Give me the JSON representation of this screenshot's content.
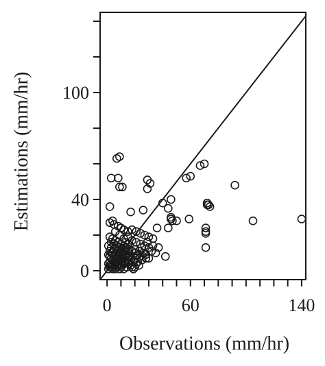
{
  "chart_data": {
    "type": "scatter",
    "xlabel": "Observations (mm/hr)",
    "ylabel": "Estimations (mm/hr)",
    "xlim": [
      -5,
      143
    ],
    "ylim": [
      -5,
      145
    ],
    "x_ticks": [
      0,
      10,
      20,
      30,
      40,
      50,
      60,
      70,
      80,
      90,
      100,
      110,
      120,
      130,
      140
    ],
    "x_tick_labels": [
      {
        "value": 0,
        "text": "0"
      },
      {
        "value": 60,
        "text": "60"
      },
      {
        "value": 140,
        "text": "140"
      }
    ],
    "y_ticks": [
      0,
      20,
      40,
      60,
      80,
      100,
      120,
      140
    ],
    "y_tick_labels": [
      {
        "value": 0,
        "text": "0"
      },
      {
        "value": 40,
        "text": "40"
      },
      {
        "value": 100,
        "text": "100"
      }
    ],
    "reference_line": "y = x",
    "grid": false,
    "series": [
      {
        "points": [
          [
            3,
            52
          ],
          [
            7,
            63
          ],
          [
            9,
            64
          ],
          [
            8,
            52
          ],
          [
            9,
            47
          ],
          [
            11,
            47
          ],
          [
            29,
            51
          ],
          [
            31,
            49
          ],
          [
            29,
            46
          ],
          [
            57,
            52
          ],
          [
            60,
            53
          ],
          [
            67,
            59
          ],
          [
            70,
            60
          ],
          [
            92,
            48
          ],
          [
            2,
            36
          ],
          [
            17,
            33
          ],
          [
            26,
            34
          ],
          [
            40,
            38
          ],
          [
            46,
            40
          ],
          [
            44,
            35
          ],
          [
            72,
            38
          ],
          [
            72,
            37
          ],
          [
            73,
            37
          ],
          [
            74,
            36
          ],
          [
            59,
            29
          ],
          [
            50,
            28
          ],
          [
            46,
            30
          ],
          [
            46,
            29
          ],
          [
            47,
            28
          ],
          [
            71,
            24
          ],
          [
            71,
            22
          ],
          [
            71,
            21
          ],
          [
            71,
            13
          ],
          [
            105,
            28
          ],
          [
            140,
            29
          ],
          [
            44,
            24
          ],
          [
            36,
            24
          ],
          [
            2,
            27
          ],
          [
            4,
            28
          ],
          [
            5,
            26
          ],
          [
            8,
            25
          ],
          [
            10,
            24
          ],
          [
            12,
            23
          ],
          [
            15,
            22
          ],
          [
            18,
            23
          ],
          [
            21,
            22
          ],
          [
            24,
            21
          ],
          [
            27,
            20
          ],
          [
            30,
            19
          ],
          [
            33,
            18
          ],
          [
            37,
            13
          ],
          [
            42,
            8
          ],
          [
            6,
            22
          ],
          [
            9,
            20
          ],
          [
            12,
            18
          ],
          [
            15,
            19
          ],
          [
            18,
            17
          ],
          [
            21,
            16
          ],
          [
            24,
            15
          ],
          [
            27,
            14
          ],
          [
            30,
            13
          ],
          [
            32,
            11
          ],
          [
            35,
            10
          ],
          [
            28,
            7
          ],
          [
            25,
            6
          ],
          [
            22,
            5
          ],
          [
            2,
            19
          ],
          [
            4,
            18
          ],
          [
            6,
            17
          ],
          [
            8,
            16
          ],
          [
            10,
            15
          ],
          [
            12,
            14
          ],
          [
            14,
            13
          ],
          [
            16,
            12
          ],
          [
            18,
            11
          ],
          [
            20,
            10
          ],
          [
            22,
            9
          ],
          [
            24,
            8
          ],
          [
            26,
            8
          ],
          [
            28,
            9
          ],
          [
            30,
            7
          ],
          [
            1,
            14
          ],
          [
            3,
            13
          ],
          [
            5,
            12
          ],
          [
            7,
            11
          ],
          [
            9,
            10
          ],
          [
            11,
            9
          ],
          [
            13,
            8
          ],
          [
            15,
            7
          ],
          [
            17,
            6
          ],
          [
            19,
            5
          ],
          [
            21,
            4
          ],
          [
            23,
            3
          ],
          [
            20,
            7
          ],
          [
            16,
            9
          ],
          [
            13,
            11
          ],
          [
            1,
            9
          ],
          [
            2,
            8
          ],
          [
            3,
            7
          ],
          [
            4,
            6
          ],
          [
            5,
            5
          ],
          [
            6,
            4
          ],
          [
            7,
            3
          ],
          [
            8,
            2
          ],
          [
            9,
            1
          ],
          [
            10,
            2
          ],
          [
            11,
            3
          ],
          [
            12,
            4
          ],
          [
            13,
            5
          ],
          [
            14,
            6
          ],
          [
            15,
            5
          ],
          [
            16,
            4
          ],
          [
            17,
            3
          ],
          [
            18,
            2
          ],
          [
            19,
            1
          ],
          [
            20,
            2
          ],
          [
            1,
            4
          ],
          [
            2,
            3
          ],
          [
            3,
            2
          ],
          [
            4,
            1
          ],
          [
            5,
            2
          ],
          [
            6,
            6
          ],
          [
            7,
            7
          ],
          [
            8,
            8
          ],
          [
            9,
            9
          ],
          [
            10,
            10
          ],
          [
            11,
            11
          ],
          [
            12,
            12
          ],
          [
            13,
            13
          ],
          [
            2,
            11
          ],
          [
            4,
            10
          ],
          [
            6,
            9
          ],
          [
            8,
            7
          ],
          [
            10,
            6
          ],
          [
            12,
            7
          ],
          [
            14,
            9
          ],
          [
            16,
            8
          ],
          [
            3,
            16
          ],
          [
            5,
            15
          ],
          [
            7,
            14
          ],
          [
            9,
            13
          ],
          [
            11,
            12
          ],
          [
            13,
            16
          ],
          [
            15,
            15
          ],
          [
            2,
            5
          ],
          [
            3,
            10
          ],
          [
            5,
            8
          ],
          [
            7,
            5
          ],
          [
            9,
            6
          ],
          [
            11,
            7
          ],
          [
            14,
            2
          ],
          [
            17,
            8
          ],
          [
            20,
            12
          ],
          [
            23,
            11
          ],
          [
            26,
            10
          ],
          [
            1,
            1
          ],
          [
            2,
            2
          ],
          [
            3,
            4
          ],
          [
            4,
            3
          ],
          [
            6,
            1
          ],
          [
            8,
            4
          ],
          [
            10,
            4
          ],
          [
            12,
            1
          ],
          [
            25,
            13
          ],
          [
            29,
            16
          ],
          [
            33,
            14
          ]
        ]
      }
    ]
  }
}
